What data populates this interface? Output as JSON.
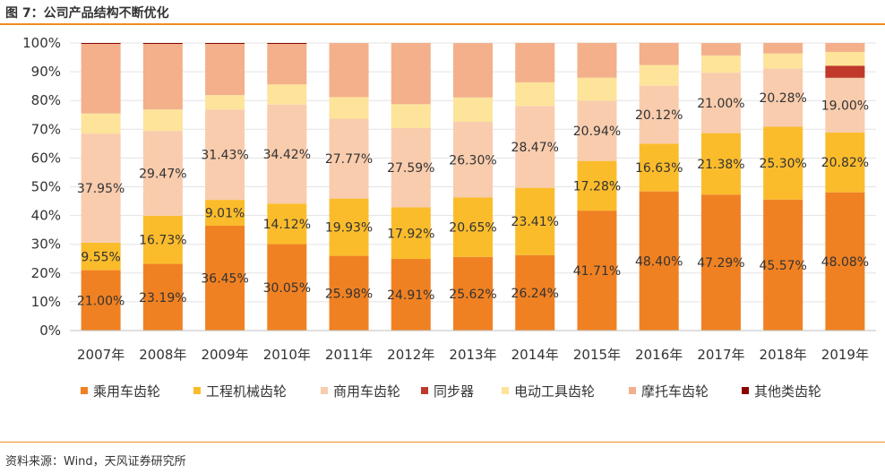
{
  "figure_title": "图 7：公司产品结构不断优化",
  "source": "资料来源：Wind，天风证券研究所",
  "colors": {
    "乘用车齿轮": "#f08122",
    "工程机械齿轮": "#fbbc2c",
    "商用车齿轮": "#f8ccad",
    "同步器": "#c0392b",
    "电动工具齿轮": "#fde49a",
    "摩托车齿轮": "#f3b08a",
    "其他类齿轮": "#8b0000"
  },
  "chart_data": {
    "type": "bar",
    "stacked": true,
    "title": "",
    "xlabel": "",
    "ylabel": "",
    "ylim": [
      0,
      100
    ],
    "yticks": [
      "0%",
      "10%",
      "20%",
      "30%",
      "40%",
      "50%",
      "60%",
      "70%",
      "80%",
      "90%",
      "100%"
    ],
    "legend_position": "bottom",
    "categories": [
      "2007年",
      "2008年",
      "2009年",
      "2010年",
      "2011年",
      "2012年",
      "2013年",
      "2014年",
      "2015年",
      "2016年",
      "2017年",
      "2018年",
      "2019年"
    ],
    "series": [
      {
        "name": "乘用车齿轮",
        "values": [
          21.0,
          23.19,
          36.45,
          30.05,
          25.98,
          24.91,
          25.62,
          26.24,
          41.71,
          48.4,
          47.29,
          45.57,
          48.08
        ],
        "labels": [
          "21.00%",
          "23.19%",
          "36.45%",
          "30.05%",
          "25.98%",
          "24.91%",
          "25.62%",
          "26.24%",
          "41.71%",
          "48.40%",
          "47.29%",
          "45.57%",
          "48.08%"
        ]
      },
      {
        "name": "工程机械齿轮",
        "values": [
          9.55,
          16.73,
          9.01,
          14.12,
          19.93,
          17.92,
          20.65,
          23.41,
          17.28,
          16.63,
          21.38,
          25.3,
          20.82
        ],
        "labels": [
          "9.55%",
          "16.73%",
          "9.01%",
          "14.12%",
          "19.93%",
          "17.92%",
          "20.65%",
          "23.41%",
          "17.28%",
          "16.63%",
          "21.38%",
          "25.30%",
          "20.82%"
        ]
      },
      {
        "name": "商用车齿轮",
        "values": [
          37.95,
          29.47,
          31.43,
          34.42,
          27.77,
          27.59,
          26.3,
          28.47,
          20.94,
          20.12,
          21.0,
          20.28,
          19.0
        ],
        "labels": [
          "37.95%",
          "29.47%",
          "31.43%",
          "34.42%",
          "27.77%",
          "27.59%",
          "26.30%",
          "28.47%",
          "20.94%",
          "20.12%",
          "21.00%",
          "20.28%",
          "19.00%"
        ]
      },
      {
        "name": "同步器",
        "values": [
          0,
          0,
          0,
          0,
          0,
          0,
          0,
          0,
          0,
          0,
          0,
          0,
          4.2
        ]
      },
      {
        "name": "电动工具齿轮",
        "values": [
          7.0,
          7.5,
          5.0,
          7.0,
          7.5,
          8.3,
          8.5,
          8.2,
          8.0,
          7.2,
          6.0,
          5.2,
          4.8
        ]
      },
      {
        "name": "摩托车齿轮",
        "values": [
          24.2,
          22.8,
          17.8,
          14.1,
          18.8,
          21.3,
          18.9,
          13.7,
          12.1,
          7.7,
          4.3,
          3.7,
          3.1
        ]
      },
      {
        "name": "其他类齿轮",
        "values": [
          0.3,
          0.3,
          0.3,
          0.3,
          0,
          0,
          0,
          0,
          0,
          0,
          0,
          0,
          0
        ]
      }
    ]
  }
}
